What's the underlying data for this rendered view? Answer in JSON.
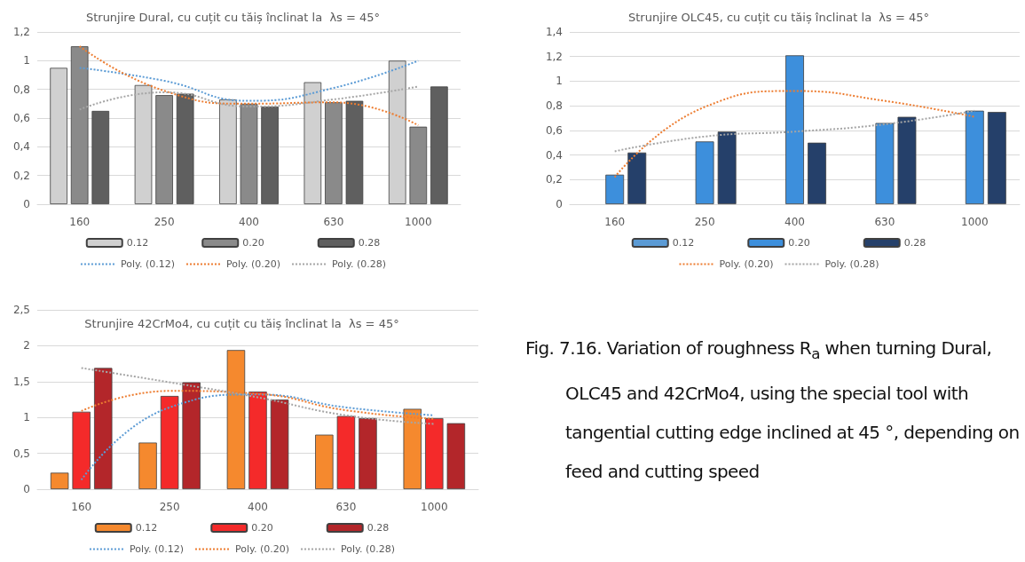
{
  "chart_data": [
    {
      "type": "bar",
      "title": "Strunjire Dural, cu cuțit cu tăiș înclinat la  λs = 45°",
      "categories": [
        "160",
        "250",
        "400",
        "630",
        "1000"
      ],
      "ylim": [
        0,
        1.2
      ],
      "yticks": [
        0,
        {
          "value": 0.2,
          "label": "0,2"
        },
        {
          "value": 0.4,
          "label": "0,4"
        },
        {
          "value": 0.6,
          "label": "0,6"
        },
        {
          "value": 0.8,
          "label": "0,8"
        },
        1,
        {
          "value": 1.2,
          "label": "1,2"
        }
      ],
      "grid": "y",
      "legend": "bottom",
      "marker": "none",
      "line_style": "dotted",
      "series": [
        {
          "name": "0.12",
          "color": "#d0d0d0",
          "values": [
            0.95,
            0.83,
            0.73,
            0.85,
            1.0
          ]
        },
        {
          "name": "0.20",
          "color": "#8a8a8a",
          "values": [
            1.1,
            0.76,
            0.7,
            0.71,
            0.54
          ]
        },
        {
          "name": "0.28",
          "color": "#5f5f5f",
          "values": [
            0.65,
            0.77,
            0.68,
            0.72,
            0.82
          ]
        },
        {
          "name": "Poly. (0.12)",
          "type": "line",
          "color": "#5b9bd5",
          "values": [
            0.95,
            0.86,
            0.72,
            0.81,
            1.0
          ]
        },
        {
          "name": "Poly. (0.20)",
          "type": "line",
          "color": "#ed7d31",
          "values": [
            1.1,
            0.79,
            0.7,
            0.71,
            0.55
          ]
        },
        {
          "name": "Poly. (0.28)",
          "type": "line",
          "color": "#a5a5a5",
          "values": [
            0.66,
            0.78,
            0.68,
            0.73,
            0.82
          ]
        }
      ]
    },
    {
      "type": "bar",
      "title": "Strunjire OLC45, cu cuțit cu tăiș înclinat la  λs = 45°",
      "categories": [
        "160",
        "250",
        "400",
        "630",
        "1000"
      ],
      "ylim": [
        0,
        1.4
      ],
      "yticks": [
        0,
        {
          "value": 0.2,
          "label": "0,2"
        },
        {
          "value": 0.4,
          "label": "0,4"
        },
        {
          "value": 0.6,
          "label": "0,6"
        },
        {
          "value": 0.8,
          "label": "0,8"
        },
        1,
        {
          "value": 1.2,
          "label": "1,2"
        },
        {
          "value": 1.4,
          "label": "1,4"
        }
      ],
      "grid": "y",
      "legend": "bottom",
      "marker": "none",
      "line_style": "dotted",
      "series": [
        {
          "name": "0.12",
          "color": "#5b9bd5",
          "values": [
            null,
            null,
            null,
            null,
            null
          ]
        },
        {
          "name": "0.20",
          "color": "#3d8fdc",
          "values": [
            0.24,
            0.51,
            1.21,
            0.66,
            0.76
          ]
        },
        {
          "name": "0.28",
          "color": "#25406a",
          "values": [
            0.42,
            0.59,
            0.5,
            0.71,
            0.75
          ]
        },
        {
          "name": "Poly. (0.20)",
          "type": "line",
          "color": "#ed7d31",
          "values": [
            0.22,
            0.79,
            0.92,
            0.84,
            0.71
          ]
        },
        {
          "name": "Poly. (0.28)",
          "type": "line",
          "color": "#a5a5a5",
          "values": [
            0.43,
            0.55,
            0.59,
            0.65,
            0.76
          ]
        }
      ]
    },
    {
      "type": "bar",
      "title": "Strunjire 42CrMo4, cu cuțit cu tăiș înclinat la  λs = 45°",
      "categories": [
        "160",
        "250",
        "400",
        "630",
        "1000"
      ],
      "ylim": [
        0,
        2.5
      ],
      "yticks": [
        0,
        {
          "value": 0.5,
          "label": "0,5"
        },
        1,
        {
          "value": 1.5,
          "label": "1,5"
        },
        2,
        {
          "value": 2.5,
          "label": "2,5"
        }
      ],
      "grid": "y",
      "legend": "bottom",
      "marker": "none",
      "line_style": "dotted",
      "series": [
        {
          "name": "0.12",
          "color": "#f5892e",
          "values": [
            0.23,
            0.65,
            1.94,
            0.76,
            1.12
          ]
        },
        {
          "name": "0.20",
          "color": "#f42a2a",
          "values": [
            1.08,
            1.3,
            1.36,
            1.02,
            0.99
          ]
        },
        {
          "name": "0.28",
          "color": "#b3262a",
          "values": [
            1.69,
            1.49,
            1.25,
            0.99,
            0.92
          ]
        },
        {
          "name": "Poly. (0.12)",
          "type": "line",
          "color": "#5b9bd5",
          "values": [
            0.13,
            1.14,
            1.32,
            1.14,
            1.03
          ]
        },
        {
          "name": "Poly. (0.20)",
          "type": "line",
          "color": "#ed7d31",
          "values": [
            1.09,
            1.37,
            1.33,
            1.1,
            0.98
          ]
        },
        {
          "name": "Poly. (0.28)",
          "type": "line",
          "color": "#a5a5a5",
          "values": [
            1.69,
            1.49,
            1.28,
            1.03,
            0.91
          ]
        }
      ]
    },
    {
      "type": "other",
      "annotations": [
        "Fig. 7.16. Variation of roughness R$_{a}$ when turning Dural, OLC45 and 42CrMo4, using the special tool with tangential cutting edge inclined at 45 °, depending on feed and cutting speed"
      ]
    }
  ]
}
